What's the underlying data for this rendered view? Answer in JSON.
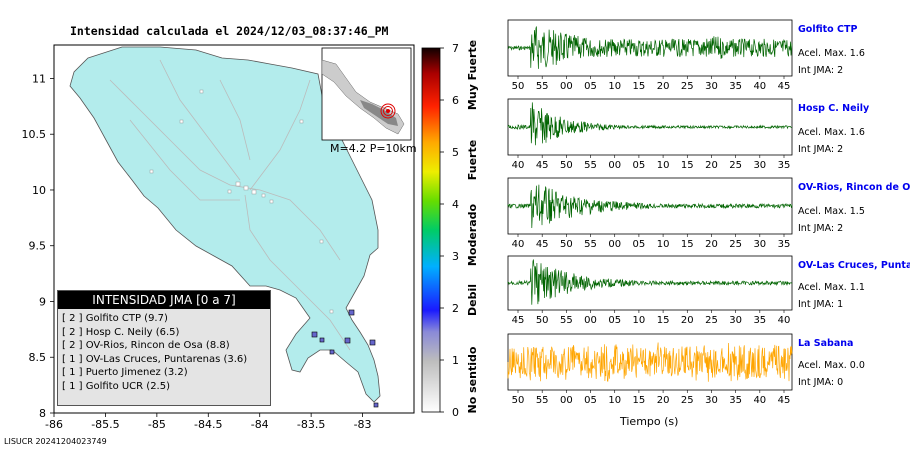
{
  "title": "Intensidad calculada el 2024/12/03_08:37:46_PM",
  "footer_code": "LISUCR 20241204023749",
  "colors": {
    "sea": "#ffffff",
    "land": "#b3ecec",
    "wave_green": "#006400",
    "wave_orange": "#ffa500",
    "station_link": "#0000ee"
  },
  "map": {
    "inset_label": "M=4.2 P=10km",
    "legend_title": "INTENSIDAD JMA [0 a 7]",
    "legend_items": [
      "[ 2 ]  Golfito CTP (9.7)",
      "[ 2 ]  Hosp C. Neily (6.5)",
      "[ 2 ]  OV-Rios, Rincon de Osa (8.8)",
      "[ 1 ]  OV-Las Cruces, Puntarenas (3.6)",
      "[ 1 ]  Puerto Jimenez (3.2)",
      "[ 1 ]  Golfito UCR (2.5)"
    ]
  },
  "colorbar": {
    "ticks": [
      "0",
      "1",
      "2",
      "3",
      "4",
      "5",
      "6",
      "7"
    ],
    "labels": [
      "No sentido",
      "Debil",
      "Moderado",
      "Fuerte",
      "Muy Fuerte"
    ]
  },
  "stations": [
    {
      "name": "Golfito CTP",
      "acel": "Acel. Max. 1.6",
      "int": "Int JMA: 2"
    },
    {
      "name": "Hosp C. Neily",
      "acel": "Acel. Max. 1.6",
      "int": "Int JMA: 2"
    },
    {
      "name": "OV-Rios, Rincon de Os",
      "acel": "Acel. Max. 1.5",
      "int": "Int JMA: 2"
    },
    {
      "name": "OV-Las Cruces, Puntar",
      "acel": "Acel. Max. 1.1",
      "int": "Int JMA: 1"
    },
    {
      "name": "La Sabana",
      "acel": "Acel. Max. 0.0",
      "int": "Int JMA: 0"
    }
  ],
  "time_axis_label": "Tiempo (s)",
  "chart_data": [
    {
      "type": "scatter",
      "title": "Intensidad calculada el 2024/12/03_08:37:46_PM",
      "xlabel": "",
      "ylabel": "",
      "xlim": [
        -86,
        -82.5
      ],
      "ylim": [
        8,
        11.3
      ],
      "x_ticks": [
        "-86",
        "-85.5",
        "-85",
        "-84.5",
        "-84",
        "-83.5",
        "-83"
      ],
      "y_ticks": [
        "8",
        "8.5",
        "9",
        "9.5",
        "10",
        "10.5",
        "11"
      ],
      "points": [
        {
          "name": "Golfito CTP",
          "x": -83.17,
          "y": 8.65,
          "intensity": 2
        },
        {
          "name": "Hosp C. Neily",
          "x": -82.95,
          "y": 8.64,
          "intensity": 2
        },
        {
          "name": "OV-Rios, Rincon de Osa",
          "x": -83.48,
          "y": 8.71,
          "intensity": 2
        },
        {
          "name": "OV-Las Cruces, Puntarenas",
          "x": -83.15,
          "y": 8.93,
          "intensity": 1
        },
        {
          "name": "Puerto Jimenez",
          "x": -83.31,
          "y": 8.54,
          "intensity": 1
        },
        {
          "name": "Golfito UCR",
          "x": -83.37,
          "y": 8.61,
          "intensity": 1
        }
      ]
    },
    {
      "type": "line",
      "series": [
        {
          "name": "Golfito CTP",
          "x_ticks": [
            "50",
            "55",
            "00",
            "05",
            "10",
            "15",
            "20",
            "25",
            "30",
            "35",
            "40",
            "45"
          ]
        },
        {
          "name": "Hosp C. Neily",
          "x_ticks": [
            "40",
            "45",
            "50",
            "55",
            "00",
            "05",
            "10",
            "15",
            "20",
            "25",
            "30",
            "35"
          ]
        },
        {
          "name": "OV-Rios, Rincon de Os",
          "x_ticks": [
            "40",
            "45",
            "50",
            "55",
            "00",
            "05",
            "10",
            "15",
            "20",
            "25",
            "30",
            "35"
          ]
        },
        {
          "name": "OV-Las Cruces, Puntar",
          "x_ticks": [
            "45",
            "50",
            "55",
            "00",
            "05",
            "10",
            "15",
            "20",
            "25",
            "30",
            "35",
            "40"
          ]
        },
        {
          "name": "La Sabana",
          "x_ticks": [
            "50",
            "55",
            "00",
            "05",
            "10",
            "15",
            "20",
            "25",
            "30",
            "35",
            "40",
            "45"
          ]
        }
      ],
      "xlabel": "Tiempo (s)"
    }
  ]
}
